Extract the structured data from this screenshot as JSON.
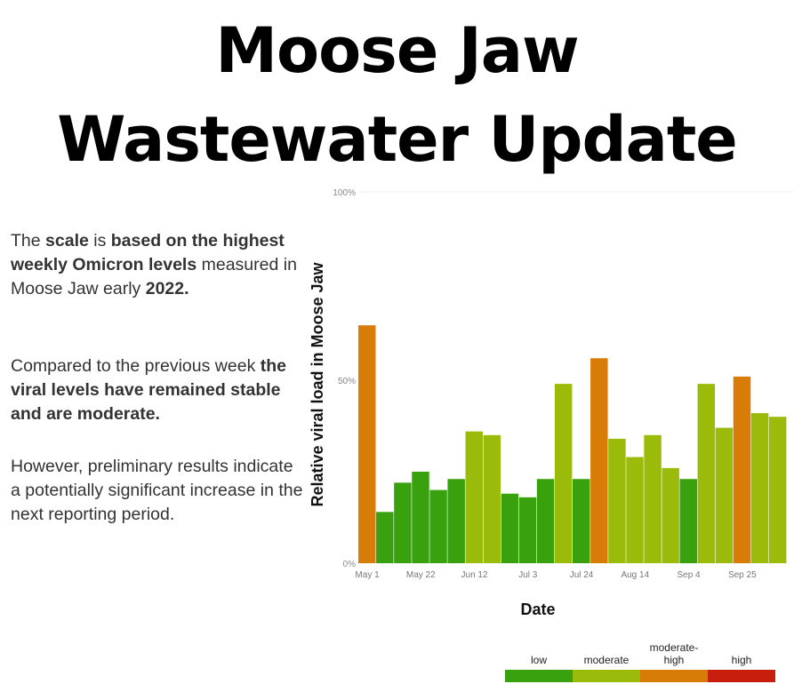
{
  "title": {
    "line1": "Moose Jaw",
    "line2": "Wastewater Update"
  },
  "text": {
    "p1": [
      {
        "t": "The ",
        "b": false
      },
      {
        "t": "scale",
        "b": true
      },
      {
        "t": " is ",
        "b": false
      },
      {
        "t": "based on the highest weekly Omicron levels",
        "b": true
      },
      {
        "t": " measured in Moose Jaw early ",
        "b": false
      },
      {
        "t": "2022.",
        "b": true
      }
    ],
    "p2": [
      {
        "t": "Compared to the previous week ",
        "b": false
      },
      {
        "t": "the viral levels have remained stable and are moderate.",
        "b": true
      }
    ],
    "p3": [
      {
        "t": "However, preliminary results indicate a potentially significant increase in the next reporting period.",
        "b": false
      }
    ]
  },
  "chart_data": {
    "type": "bar",
    "ylabel": "Relative viral load in Moose Jaw",
    "xlabel": "Date",
    "ylim": [
      0,
      100
    ],
    "yticks": [
      {
        "value": 0,
        "label": "0%"
      },
      {
        "value": 50,
        "label": "50%"
      },
      {
        "value": 100,
        "label": "100%"
      }
    ],
    "xtick_labels": [
      {
        "index": 0,
        "label": "May 1"
      },
      {
        "index": 3,
        "label": "May 22"
      },
      {
        "index": 6,
        "label": "Jun 12"
      },
      {
        "index": 9,
        "label": "Jul 3"
      },
      {
        "index": 12,
        "label": "Jul 24"
      },
      {
        "index": 15,
        "label": "Aug 14"
      },
      {
        "index": 18,
        "label": "Sep 4"
      },
      {
        "index": 21,
        "label": "Sep 25"
      }
    ],
    "values": [
      65,
      14,
      22,
      25,
      20,
      23,
      36,
      35,
      19,
      18,
      23,
      49,
      23,
      56,
      34,
      29,
      35,
      26,
      23,
      49,
      37,
      51,
      41,
      40
    ],
    "levels": [
      "moderate-high",
      "low",
      "low",
      "low",
      "low",
      "low",
      "moderate",
      "moderate",
      "low",
      "low",
      "low",
      "moderate",
      "low",
      "moderate-high",
      "moderate",
      "moderate",
      "moderate",
      "moderate",
      "low",
      "moderate",
      "moderate",
      "moderate-high",
      "moderate",
      "moderate"
    ],
    "legend": [
      {
        "key": "low",
        "label": "low",
        "color": "#3aa10e"
      },
      {
        "key": "moderate",
        "label": "moderate",
        "color": "#9bbb0b"
      },
      {
        "key": "moderate-high",
        "label": "moderate-high",
        "color": "#d67c07"
      },
      {
        "key": "high",
        "label": "high",
        "color": "#c81e0e"
      }
    ],
    "grid": false,
    "legend_placement": "bottom-right"
  }
}
